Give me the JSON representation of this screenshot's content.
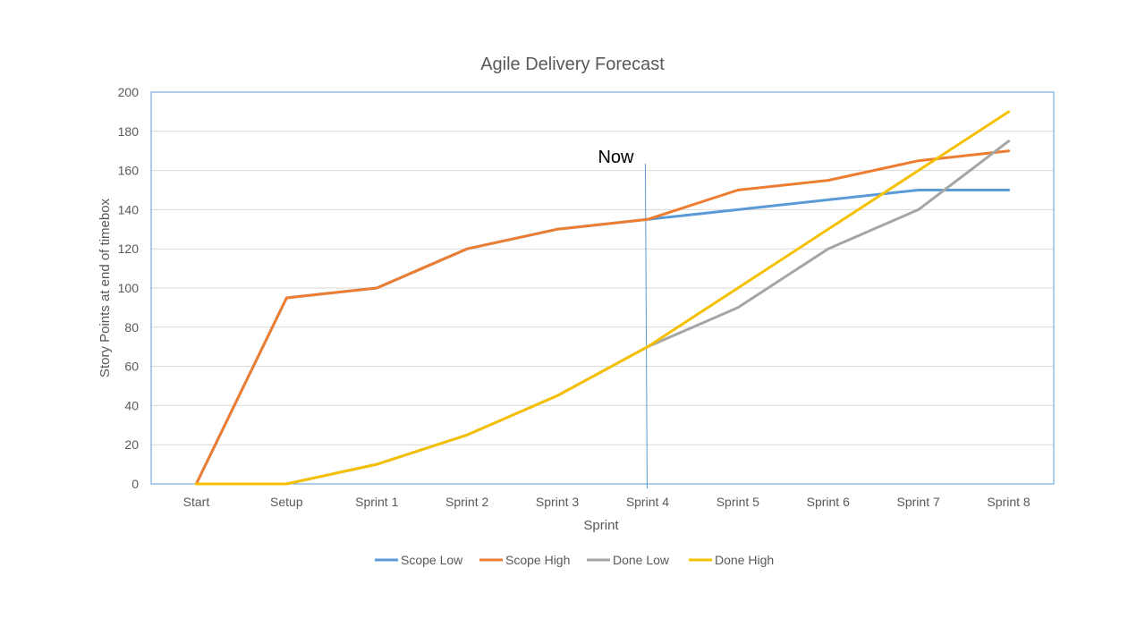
{
  "chart_data": {
    "type": "line",
    "title": "Agile Delivery Forecast",
    "xlabel": "Sprint",
    "ylabel": "Story Points at end of timebox",
    "categories": [
      "Start",
      "Setup",
      "Sprint 1",
      "Sprint 2",
      "Sprint 3",
      "Sprint 4",
      "Sprint 5",
      "Sprint 6",
      "Sprint 7",
      "Sprint 8"
    ],
    "ylim": [
      0,
      200
    ],
    "yticks": [
      0,
      20,
      40,
      60,
      80,
      100,
      120,
      140,
      160,
      180,
      200
    ],
    "grid": true,
    "legend_position": "bottom",
    "series": [
      {
        "name": "Scope Low",
        "color": "#5b9bd5",
        "values": [
          0,
          95,
          100,
          120,
          130,
          135,
          140,
          145,
          150,
          150
        ]
      },
      {
        "name": "Scope High",
        "color": "#ed7d31",
        "values": [
          0,
          95,
          100,
          120,
          130,
          135,
          150,
          155,
          165,
          170
        ]
      },
      {
        "name": "Done Low",
        "color": "#a5a5a5",
        "values": [
          0,
          0,
          10,
          25,
          45,
          70,
          90,
          120,
          140,
          175
        ]
      },
      {
        "name": "Done High",
        "color": "#f5c000",
        "values": [
          0,
          0,
          10,
          25,
          45,
          70,
          100,
          130,
          160,
          190
        ]
      }
    ],
    "annotations": [
      {
        "text": "Now",
        "x": "Sprint 4",
        "color": "#5b9bd5"
      }
    ]
  }
}
